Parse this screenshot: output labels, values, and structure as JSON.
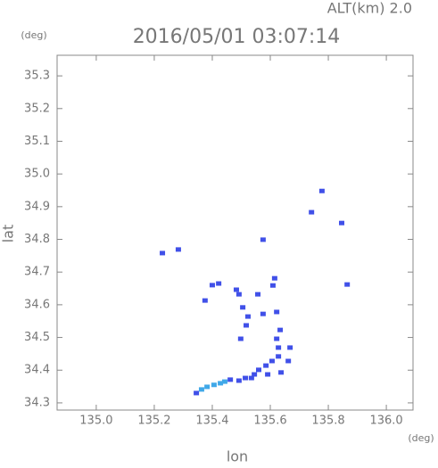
{
  "chart_data": {
    "type": "scatter",
    "header": "ALT(km)  2.0",
    "title": "2016/05/01 03:07:14",
    "y_unit": "(deg)",
    "x_unit": "(deg)",
    "ylabel": "lat",
    "xlabel": "lon",
    "xlim": [
      134.865,
      136.092
    ],
    "ylim": [
      34.278,
      35.363
    ],
    "xticks": [
      {
        "value": 135.0,
        "label": "135.0"
      },
      135.2,
      135.4,
      135.6,
      135.8,
      {
        "value": 136.0,
        "label": "136.0"
      }
    ],
    "yticks": [
      34.3,
      34.4,
      34.5,
      34.6,
      34.7,
      34.8,
      34.9,
      {
        "value": 35.0,
        "label": "35.0"
      },
      35.1,
      35.2,
      35.3
    ],
    "series": [
      {
        "color": "#4050e8",
        "x": [
          135.228,
          135.283,
          135.575,
          135.742,
          135.846,
          135.865,
          135.778,
          135.4,
          135.422,
          135.375,
          135.483,
          135.492,
          135.505,
          135.523,
          135.517,
          135.498,
          135.557,
          135.575,
          135.615,
          135.609,
          135.622,
          135.628,
          135.622,
          135.585,
          135.606,
          135.628,
          135.637,
          135.591,
          135.545,
          135.514,
          135.492,
          135.462,
          135.535,
          135.56,
          135.662,
          135.668,
          135.634,
          135.345
        ],
        "values": [
          34.758,
          34.769,
          34.799,
          34.883,
          34.85,
          34.662,
          34.948,
          34.66,
          34.665,
          34.613,
          34.646,
          34.632,
          34.592,
          34.564,
          34.537,
          34.496,
          34.632,
          34.572,
          34.681,
          34.659,
          34.578,
          34.469,
          34.496,
          34.414,
          34.428,
          34.442,
          34.393,
          34.387,
          34.387,
          34.376,
          34.368,
          34.371,
          34.376,
          34.401,
          34.428,
          34.469,
          34.523,
          34.33
        ]
      },
      {
        "color": "#40a8e8",
        "x": [
          135.363,
          135.382,
          135.406,
          135.428,
          135.443
        ],
        "values": [
          34.341,
          34.349,
          34.355,
          34.36,
          34.365
        ]
      }
    ]
  }
}
